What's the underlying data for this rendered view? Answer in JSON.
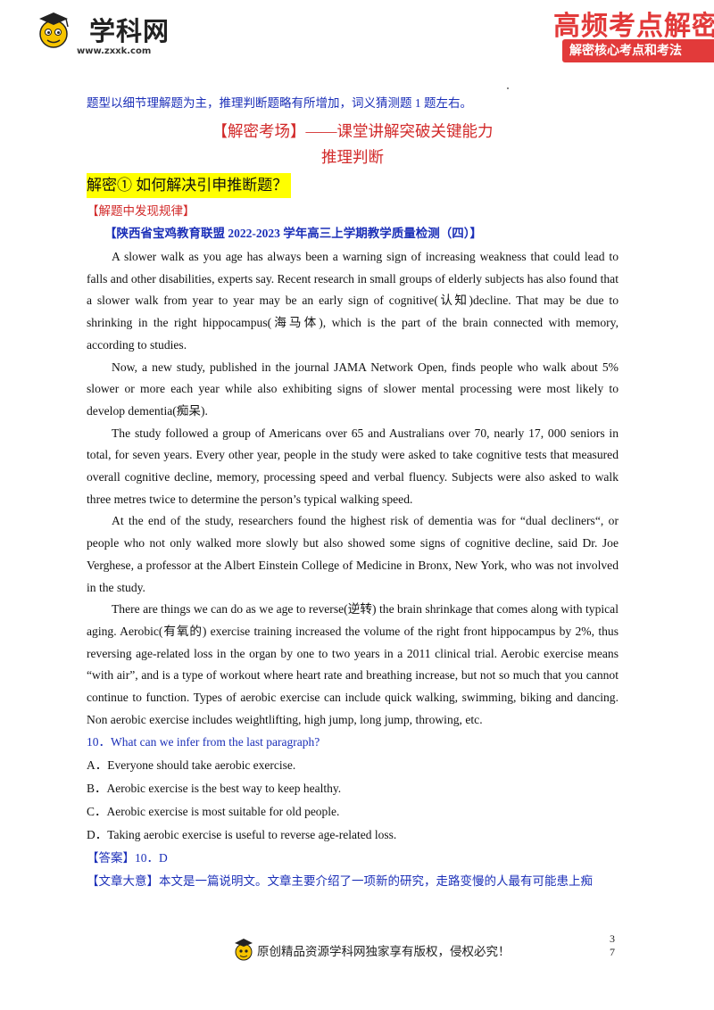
{
  "header": {
    "logo_text": "学科网",
    "logo_url": "www.zxxk.com",
    "brand_title": "高频考点解密",
    "brand_subtitle": "解密核心考点和考法"
  },
  "intro": "题型以细节理解题为主，推理判断题略有所增加，词义猜测题 1 题左右。",
  "section_title": "【解密考场】——课堂讲解突破关键能力",
  "section_subtitle": "推理判断",
  "highlight_heading": "解密①  如何解决引申推断题？",
  "sub_label": "【解题中发现规律】",
  "source": "【陕西省宝鸡教育联盟 2022-2023 学年高三上学期教学质量检测（四）】",
  "paragraphs": [
    "A slower walk as you age has always been a warning sign of increasing weakness that could lead to falls and other disabilities, experts say. Recent research in small groups of elderly subjects has also found that a slower walk from year to year may be an early sign of cognitive(认知)decline. That may be due to shrinking in the right hippocampus(海马体), which is the part of the brain connected with memory, according to studies.",
    "Now, a new study, published in the journal JAMA Network Open, finds people who walk about 5% slower or more each year while also exhibiting signs of slower mental processing were most likely to develop dementia(痴呆).",
    "The study followed a group of Americans over 65 and Australians over 70, nearly 17, 000 seniors in total, for seven years. Every other year, people in the study were asked to take cognitive tests that measured overall cognitive decline, memory, processing speed and verbal fluency. Subjects were also asked to walk three metres twice to determine the person’s typical walking speed.",
    "At the end of the study, researchers found the highest risk of dementia was for “dual decliners“, or people who not only walked more slowly but also showed some signs of cognitive decline, said Dr. Joe Verghese, a professor at the Albert Einstein College of Medicine in Bronx, New York, who was not involved in the study.",
    "There are things we can do as we age to reverse(逆转) the brain shrinkage that comes along with typical aging. Aerobic(有氧的) exercise training increased the volume of the right front hippocampus by 2%, thus reversing age-related loss in the organ by one to two years in a 2011 clinical trial. Aerobic exercise means “with air”, and is a type of workout where heart rate and breathing increase, but not so much that you cannot continue to function. Types of aerobic exercise can include quick walking, swimming, biking and dancing. Non aerobic exercise includes weightlifting, high jump, long jump, throwing, etc."
  ],
  "question": {
    "stem": "10．What can we infer from the last paragraph?",
    "options": [
      "A．Everyone should take aerobic exercise.",
      "B．Aerobic exercise is the best way to keep healthy.",
      "C．Aerobic exercise is most suitable for old people.",
      "D．Taking aerobic exercise is useful to reverse age-related loss."
    ]
  },
  "answer": {
    "label": "【答案】",
    "value": "10．D"
  },
  "summary": {
    "label": "【文章大意】",
    "text": "本文是一篇说明文。文章主要介绍了一项新的研究，走路变慢的人最有可能患上痴"
  },
  "footer": {
    "text": "原创精品资源学科网独家享有版权，侵权必究！",
    "page_top": "3",
    "page_bottom": "7"
  },
  "colors": {
    "blue_text": "#1b2fb8",
    "red_text": "#d22a2a",
    "highlight": "#ffff00",
    "brand_red": "#e23a3a"
  }
}
